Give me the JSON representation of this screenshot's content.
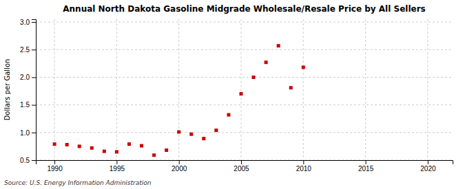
{
  "chart_data": {
    "type": "scatter",
    "title": "Annual North Dakota Gasoline Midgrade Wholesale/Resale Price by All Sellers",
    "ylabel": "Dollars per Gallon",
    "source": "Source: U.S. Energy Information Administration",
    "x": [
      1990,
      1991,
      1992,
      1993,
      1994,
      1995,
      1996,
      1997,
      1998,
      1999,
      2000,
      2001,
      2002,
      2003,
      2004,
      2005,
      2006,
      2007,
      2008,
      2009,
      2010
    ],
    "values": [
      0.79,
      0.78,
      0.75,
      0.72,
      0.66,
      0.65,
      0.79,
      0.76,
      0.59,
      0.68,
      1.01,
      0.97,
      0.89,
      1.04,
      1.32,
      1.7,
      2.0,
      2.27,
      2.57,
      1.81,
      2.18
    ],
    "color": "#cc0000",
    "marker": "square",
    "xlim": [
      1988.5,
      2022
    ],
    "ylim": [
      0.5,
      3.05
    ],
    "xticks": [
      1990,
      1995,
      2000,
      2005,
      2010,
      2015,
      2020
    ],
    "yticks": [
      0.5,
      {
        "value": 1.0,
        "label": "1.0"
      },
      1.5,
      {
        "value": 2.0,
        "label": "2.0"
      },
      2.5,
      {
        "value": 3.0,
        "label": "3.0"
      }
    ],
    "grid": true
  }
}
